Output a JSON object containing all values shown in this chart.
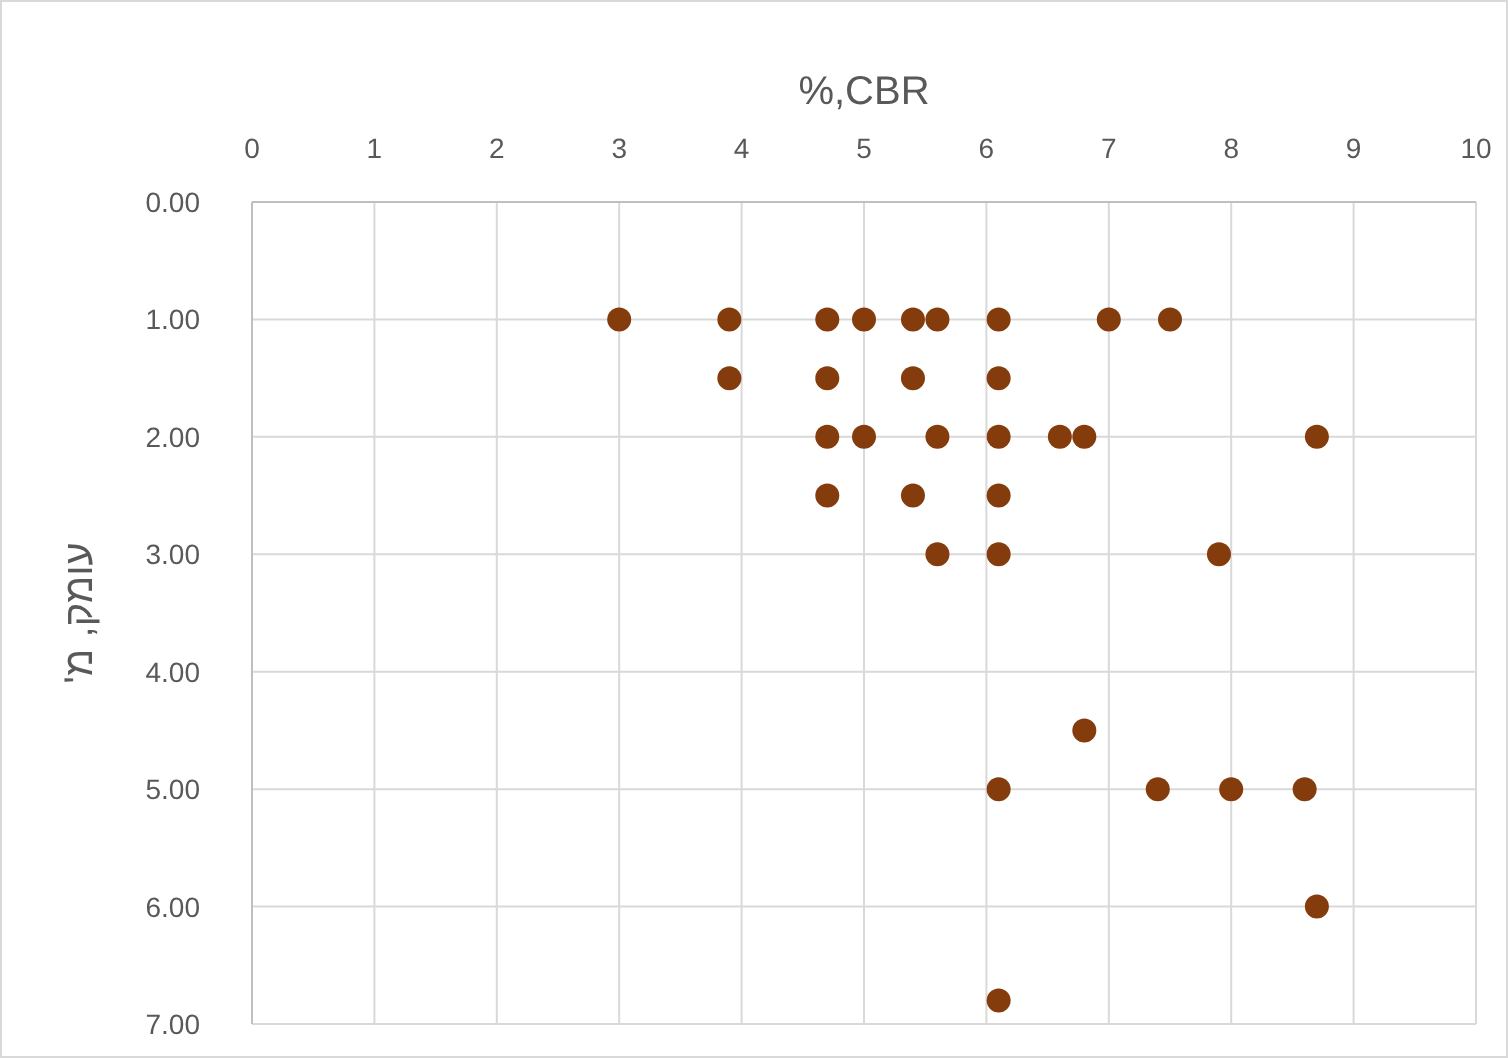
{
  "chart_data": {
    "type": "scatter",
    "title": "%,CBR",
    "ylabel": "עומק, מ'",
    "x": [
      3.0,
      3.9,
      4.7,
      5.0,
      5.4,
      5.6,
      6.1,
      7.0,
      7.5,
      3.9,
      4.7,
      5.4,
      6.1,
      4.7,
      5.0,
      5.6,
      6.1,
      6.6,
      6.8,
      8.7,
      4.7,
      5.4,
      6.1,
      5.6,
      6.1,
      7.9,
      6.8,
      6.1,
      7.4,
      8.0,
      8.6,
      8.7,
      6.1
    ],
    "series": [
      {
        "color": "#843c0c",
        "values": [
          1,
          1,
          1,
          1,
          1,
          1,
          1,
          1,
          1,
          1.5,
          1.5,
          1.5,
          1.5,
          2,
          2,
          2,
          2,
          2,
          2,
          2,
          2.5,
          2.5,
          2.5,
          3,
          3,
          3,
          4.5,
          5,
          5,
          5,
          5,
          6,
          6.8
        ]
      }
    ],
    "xlim": [
      0,
      10
    ],
    "xticks": [
      0,
      1,
      2,
      3,
      4,
      5,
      6,
      7,
      8,
      9,
      10
    ],
    "ylim": [
      7,
      0
    ],
    "yticks": [
      {
        "value": 0,
        "label": "0.00"
      },
      {
        "value": 1,
        "label": "1.00"
      },
      {
        "value": 2,
        "label": "2.00"
      },
      {
        "value": 3,
        "label": "3.00"
      },
      {
        "value": 4,
        "label": "4.00"
      },
      {
        "value": 5,
        "label": "5.00"
      },
      {
        "value": 6,
        "label": "6.00"
      },
      {
        "value": 7,
        "label": "7.00"
      }
    ],
    "grid": true,
    "marker": "circle"
  }
}
